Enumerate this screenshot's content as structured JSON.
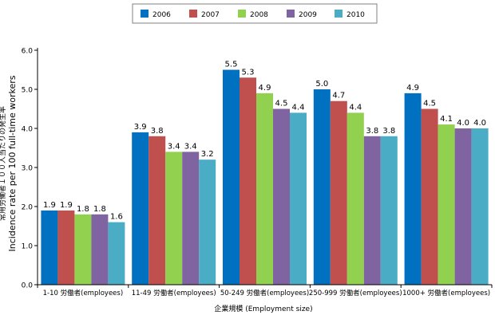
{
  "chart_data": {
    "type": "bar",
    "ylabel_ja": "常用労働者１００人当たりの発生率",
    "ylabel_en": "Incidence rate per 100 full-time workers",
    "xlabel": "企業規模 (Employment size)",
    "categories": [
      "1-10 労働者(employees)",
      "11-49 労働者(employees)",
      "50-249 労働者(employees)",
      "250-999 労働者(employees)",
      "1000+ 労働者(employees)"
    ],
    "series": [
      {
        "name": "2006",
        "color": "#0070c0",
        "values": [
          1.9,
          3.9,
          5.5,
          5.0,
          4.9
        ],
        "labels": [
          "1.9",
          "3.9",
          "5.5",
          "5.0",
          "4.9"
        ]
      },
      {
        "name": "2007",
        "color": "#c0504d",
        "values": [
          1.9,
          3.8,
          5.3,
          4.7,
          4.5
        ],
        "labels": [
          "1.9",
          "3.8",
          "5.3",
          "4.7",
          "4.5"
        ]
      },
      {
        "name": "2008",
        "color": "#92d050",
        "values": [
          1.8,
          3.4,
          4.9,
          4.4,
          4.1
        ],
        "labels": [
          "1.8",
          "3.4",
          "4.9",
          "4.4",
          "4.1"
        ]
      },
      {
        "name": "2009",
        "color": "#8064a2",
        "values": [
          1.8,
          3.4,
          4.5,
          3.8,
          4.0
        ],
        "labels": [
          "1.8",
          "3.4",
          "4.5",
          "3.8",
          "4.0"
        ]
      },
      {
        "name": "2010",
        "color": "#4bacc6",
        "values": [
          1.6,
          3.2,
          4.4,
          3.8,
          4.0
        ],
        "labels": [
          "1.6",
          "3.2",
          "4.4",
          "3.8",
          "4.0"
        ]
      }
    ],
    "ylim": [
      0,
      6
    ],
    "yticks": [
      "0.0",
      "1.0",
      "2.0",
      "3.0",
      "4.0",
      "5.0",
      "6.0"
    ],
    "grid": false,
    "legend": "top-center"
  }
}
